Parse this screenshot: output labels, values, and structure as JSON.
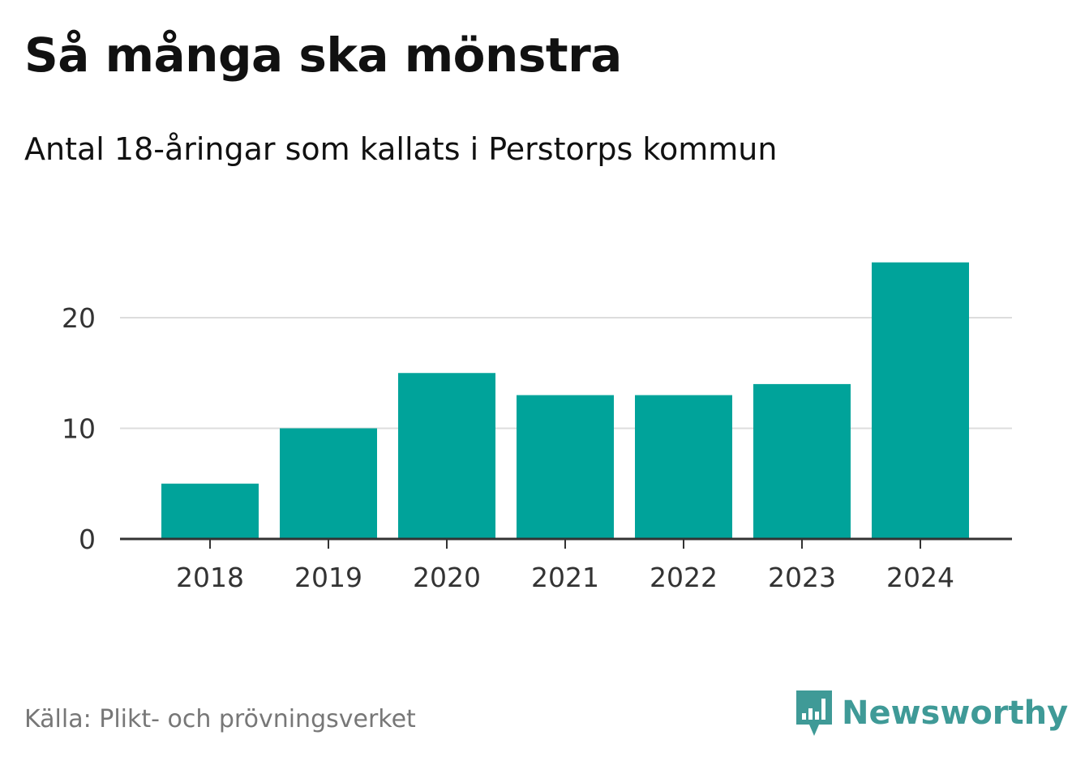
{
  "title": "Så många ska mönstra",
  "subtitle": "Antal 18-åringar som kallats i Perstorps kommun",
  "source": "Källa: Plikt- och prövningsverket",
  "brand": {
    "name": "Newsworthy",
    "icon": "newsworthy-logo-icon",
    "color": "#3f9a97"
  },
  "colors": {
    "bar": "#00a39a",
    "grid": "#dddddd",
    "axis": "#333333"
  },
  "chart_data": {
    "type": "bar",
    "categories": [
      "2018",
      "2019",
      "2020",
      "2021",
      "2022",
      "2023",
      "2024"
    ],
    "values": [
      5,
      10,
      15,
      13,
      13,
      14,
      25
    ],
    "ylim": [
      0,
      25
    ],
    "yticks": [
      0,
      10,
      20
    ],
    "xlabel": "",
    "ylabel": "",
    "grid": true,
    "legend": "none"
  }
}
